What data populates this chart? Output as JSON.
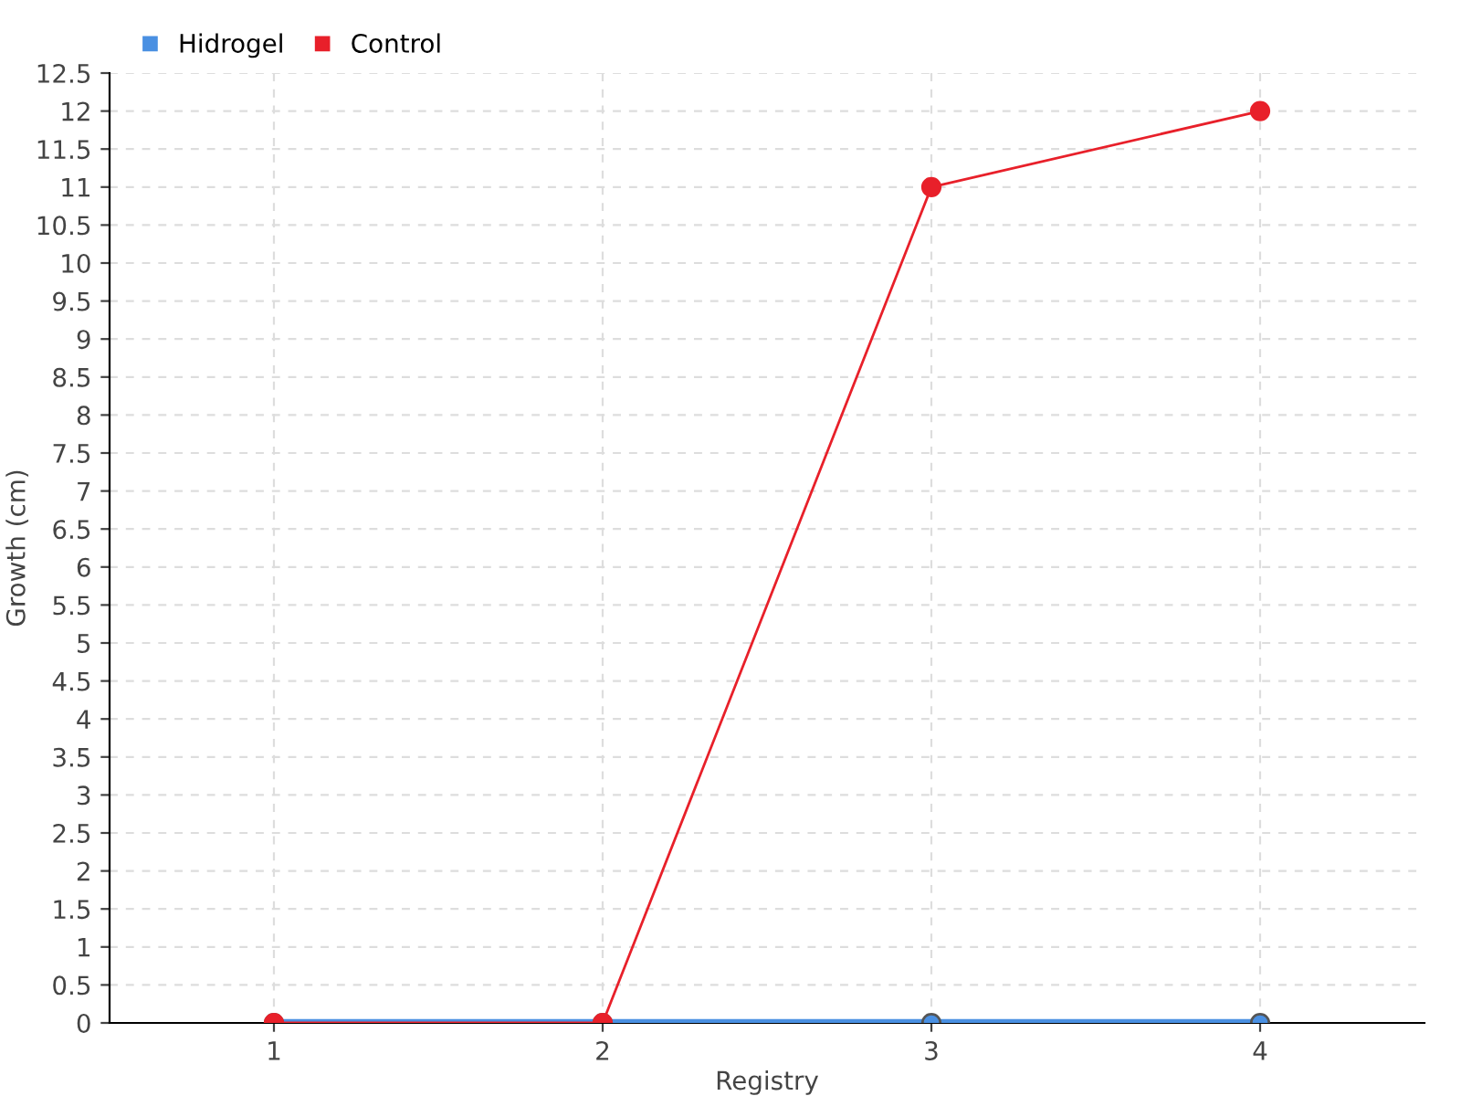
{
  "chart_data": {
    "type": "line",
    "xlabel": "Registry",
    "ylabel": "Growth (cm)",
    "categories": [
      "1",
      "2",
      "3",
      "4"
    ],
    "series": [
      {
        "name": "Hidrogel",
        "color": "#4a90e2",
        "values": [
          0,
          0,
          0,
          0
        ]
      },
      {
        "name": "Control",
        "color": "#e8202a",
        "values": [
          0,
          0,
          11,
          12
        ]
      }
    ],
    "ylim": [
      0,
      12.5
    ],
    "yticks": [
      0,
      0.5,
      1,
      1.5,
      2,
      2.5,
      3,
      3.5,
      4,
      4.5,
      5,
      5.5,
      6,
      6.5,
      7,
      7.5,
      8,
      8.5,
      9,
      9.5,
      10,
      10.5,
      11,
      11.5,
      12,
      12.5
    ],
    "grid": true,
    "legend": "top left",
    "marker": "circle",
    "line_style": "solid"
  }
}
